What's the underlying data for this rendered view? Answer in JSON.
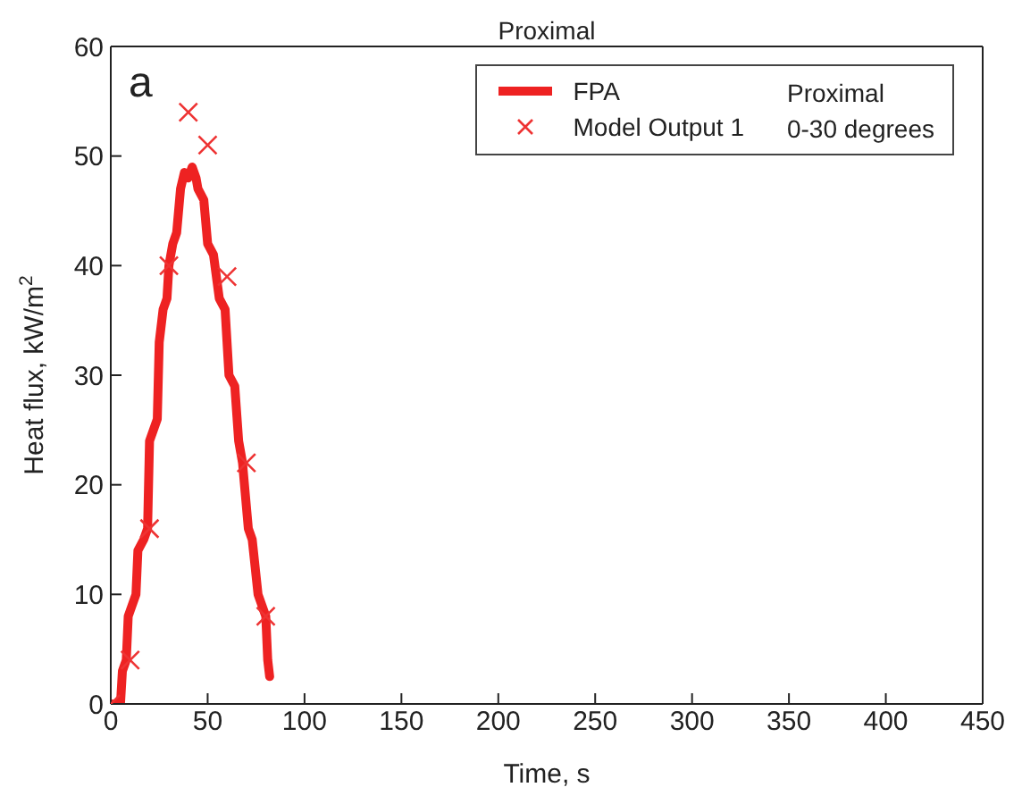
{
  "chart_data": {
    "type": "line",
    "title": "Proximal",
    "xlabel": "Time, s",
    "ylabel": "Heat flux, kW/m$^{2}$",
    "annotations": [
      "a",
      "Proximal\n0-30 degrees"
    ],
    "xlim": [
      0,
      450
    ],
    "xticks": [
      0,
      50,
      100,
      150,
      200,
      250,
      300,
      350,
      400,
      450
    ],
    "ylim": [
      0,
      60
    ],
    "yticks": [
      0,
      10,
      20,
      30,
      40,
      50,
      60
    ],
    "legend": "top right",
    "series": [
      {
        "name": "FPA",
        "color": "#ee2222",
        "marker": "none",
        "line_style": "solid",
        "x": [
          0,
          5,
          6,
          8,
          9,
          11,
          13,
          14,
          17,
          19,
          20,
          22,
          24,
          25,
          27,
          29,
          30,
          32,
          34,
          36,
          38,
          40,
          42,
          44,
          45,
          48,
          50,
          53,
          56,
          59,
          61,
          64,
          66,
          68,
          71,
          73,
          76,
          78,
          80,
          81,
          82
        ],
        "values": [
          0,
          0,
          3,
          4,
          8,
          9,
          10,
          14,
          15,
          16,
          24,
          25,
          26,
          33,
          36,
          37,
          40,
          42,
          43,
          47,
          48.5,
          48,
          49,
          48,
          47,
          46,
          42,
          41,
          37,
          36,
          30,
          29,
          24,
          22,
          16,
          15,
          10,
          9,
          8,
          4,
          2.5
        ]
      },
      {
        "name": "Model Output 1",
        "type": "scatter",
        "color": "#ee3333",
        "marker": "cross",
        "x": [
          0,
          10,
          20,
          30,
          40,
          50,
          60,
          70,
          80
        ],
        "values": [
          0,
          4,
          16,
          40,
          54,
          51,
          39,
          22,
          8
        ]
      }
    ]
  }
}
